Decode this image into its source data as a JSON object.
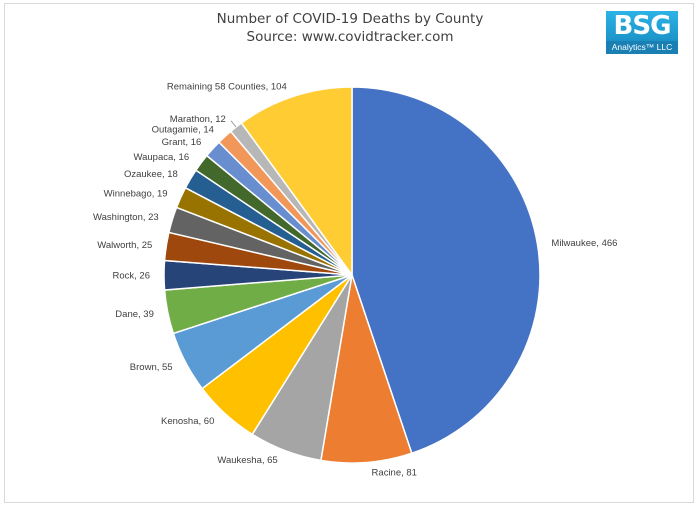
{
  "logo": {
    "main": "BSG",
    "sub": "Analytics™ LLC"
  },
  "chart_data": {
    "type": "pie",
    "title": "Number of COVID-19 Deaths by County",
    "subtitle": "Source: www.covidtracker.com",
    "slices": [
      {
        "label": "Milwaukee",
        "value": 466,
        "color": "#4472c4"
      },
      {
        "label": "Racine",
        "value": 81,
        "color": "#ed7d31"
      },
      {
        "label": "Waukesha",
        "value": 65,
        "color": "#a5a5a5"
      },
      {
        "label": "Kenosha",
        "value": 60,
        "color": "#ffc000"
      },
      {
        "label": "Brown",
        "value": 55,
        "color": "#5b9bd5"
      },
      {
        "label": "Dane",
        "value": 39,
        "color": "#70ad47"
      },
      {
        "label": "Rock",
        "value": 26,
        "color": "#264478"
      },
      {
        "label": "Walworth",
        "value": 25,
        "color": "#9e480e"
      },
      {
        "label": "Washington",
        "value": 23,
        "color": "#636363"
      },
      {
        "label": "Winnebago",
        "value": 19,
        "color": "#997300"
      },
      {
        "label": "Ozaukee",
        "value": 18,
        "color": "#255e91"
      },
      {
        "label": "Waupaca",
        "value": 16,
        "color": "#43682b"
      },
      {
        "label": "Grant",
        "value": 16,
        "color": "#698ed0"
      },
      {
        "label": "Outagamie",
        "value": 14,
        "color": "#f1975a"
      },
      {
        "label": "Marathon",
        "value": 12,
        "color": "#b7b7b7"
      },
      {
        "label": "Remaining 58 Counties",
        "value": 104,
        "color": "#ffcd33"
      }
    ]
  }
}
